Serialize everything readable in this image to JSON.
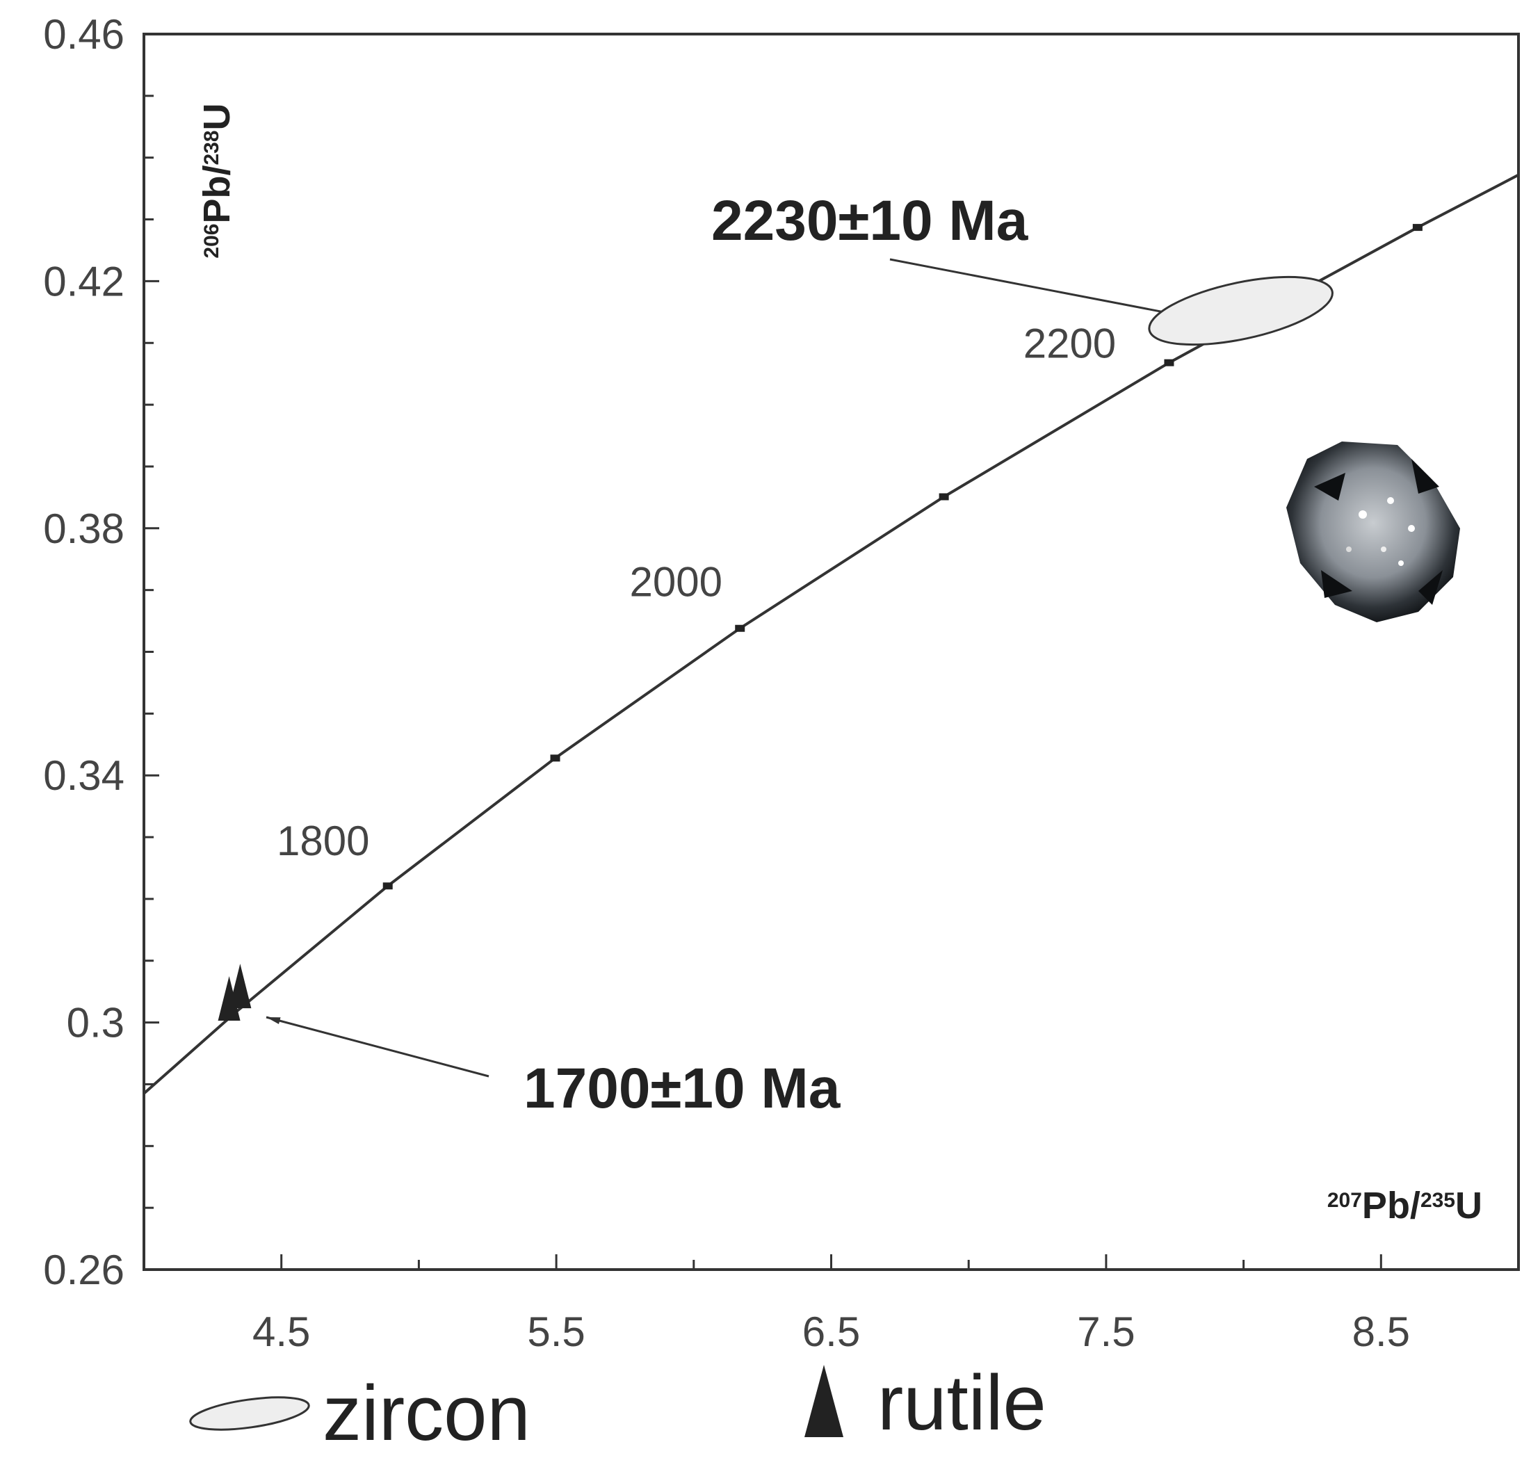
{
  "chart_data": {
    "type": "concordia",
    "xlabel": [
      "207",
      "Pb/",
      "235",
      "U"
    ],
    "ylabel": [
      "206",
      "Pb/",
      "238",
      "U"
    ],
    "xlim": [
      4.0,
      9.0
    ],
    "ylim": [
      0.26,
      0.46
    ],
    "xticks": [
      4.5,
      5.5,
      6.5,
      7.5,
      8.5
    ],
    "xminorticks": [
      5.0,
      6.0,
      7.0,
      8.0
    ],
    "yticks": [
      0.26,
      0.3,
      0.34,
      0.38,
      0.42,
      0.46
    ],
    "yminorticks": [
      0.27,
      0.28,
      0.29,
      0.31,
      0.32,
      0.33,
      0.35,
      0.36,
      0.37,
      0.39,
      0.4,
      0.41,
      0.43,
      0.44,
      0.45
    ],
    "concordia": {
      "x": [
        4.0,
        4.335,
        4.887,
        5.496,
        6.168,
        6.91,
        7.729,
        8.633,
        9.0
      ],
      "y": [
        0.2885,
        0.3017,
        0.3221,
        0.3428,
        0.3638,
        0.3851,
        0.4068,
        0.4287,
        0.4372
      ],
      "color": "#333333"
    },
    "age_markers": {
      "x": [
        4.887,
        5.496,
        6.168,
        6.91,
        7.729,
        8.633
      ],
      "y": [
        0.3221,
        0.3428,
        0.3638,
        0.3851,
        0.4068,
        0.4287
      ],
      "labels": [
        "1800",
        null,
        "2000",
        null,
        "2200",
        null
      ]
    },
    "series": [
      {
        "name": "zircon",
        "marker": "ellipse",
        "x": [
          7.99
        ],
        "y": [
          0.4152
        ],
        "x_err": [
          0.34
        ],
        "y_err": [
          0.003
        ],
        "color": "#eeeeee"
      },
      {
        "name": "rutile",
        "marker": "triangle",
        "x": [
          4.31,
          4.35
        ],
        "y": [
          0.303,
          0.305
        ],
        "color": "#222222"
      }
    ],
    "annotations": [
      "2230±10 Ma",
      "1700±10 Ma"
    ]
  }
}
